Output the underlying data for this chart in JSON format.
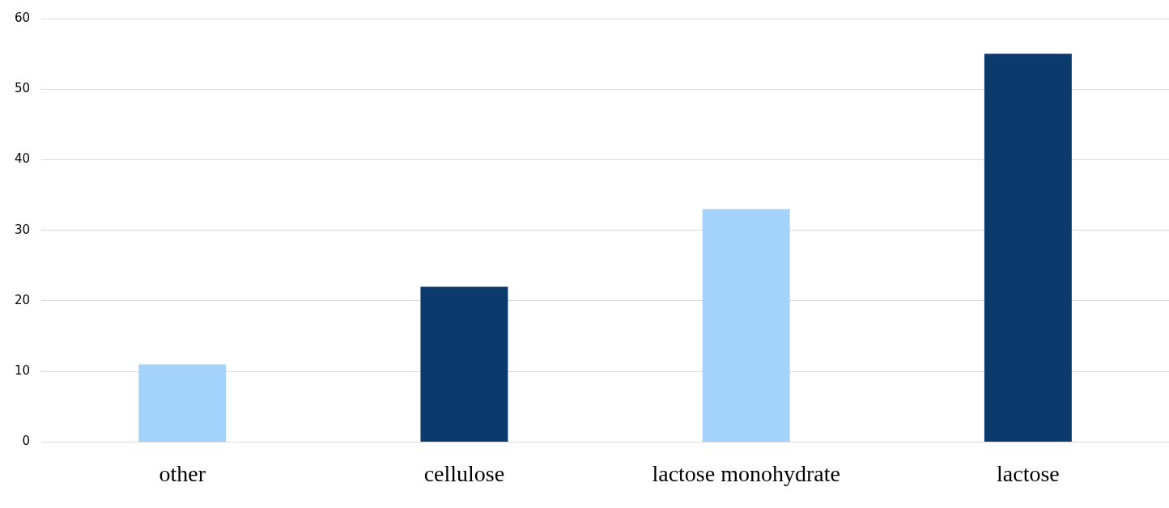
{
  "chart_data": {
    "type": "bar",
    "categories": [
      "other",
      "cellulose",
      "lactose monohydrate",
      "lactose"
    ],
    "values": [
      11,
      22,
      33,
      55
    ],
    "colors": [
      "#a3d3fb",
      "#0b3a6d",
      "#a3d3fb",
      "#0b3a6d"
    ],
    "ylim": [
      0,
      60
    ],
    "yticks": [
      0,
      10,
      20,
      30,
      40,
      50,
      60
    ],
    "grid": "y",
    "legend": false
  }
}
